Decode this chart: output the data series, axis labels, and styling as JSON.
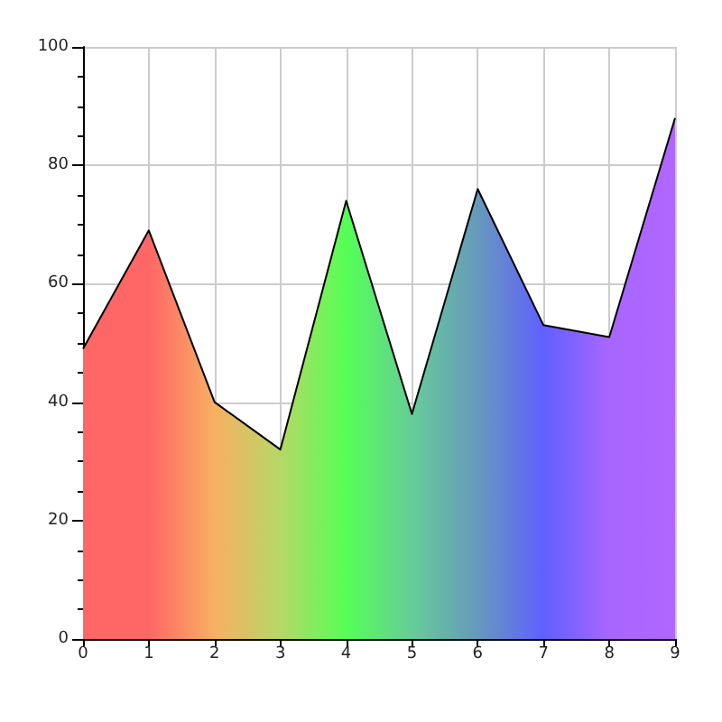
{
  "chart_data": {
    "type": "area",
    "x": [
      0,
      1,
      2,
      3,
      4,
      5,
      6,
      7,
      8,
      9
    ],
    "values": [
      49,
      69,
      40,
      32,
      74,
      38,
      76,
      53,
      51,
      88
    ],
    "colors": [
      "#ff6666",
      "#ff6666",
      "#f8b062",
      "#b5d866",
      "#55ff55",
      "#66cc99",
      "#6699bb",
      "#6060ff",
      "#a866ff",
      "#b066ff"
    ],
    "xlim": [
      0,
      9
    ],
    "xticks": [
      0,
      1,
      2,
      3,
      4,
      5,
      6,
      7,
      8,
      9
    ],
    "ylim": [
      0,
      100
    ],
    "yticks": [
      0,
      20,
      40,
      60,
      80,
      100
    ],
    "grid": true,
    "marker": "none",
    "line_style": "solid"
  }
}
